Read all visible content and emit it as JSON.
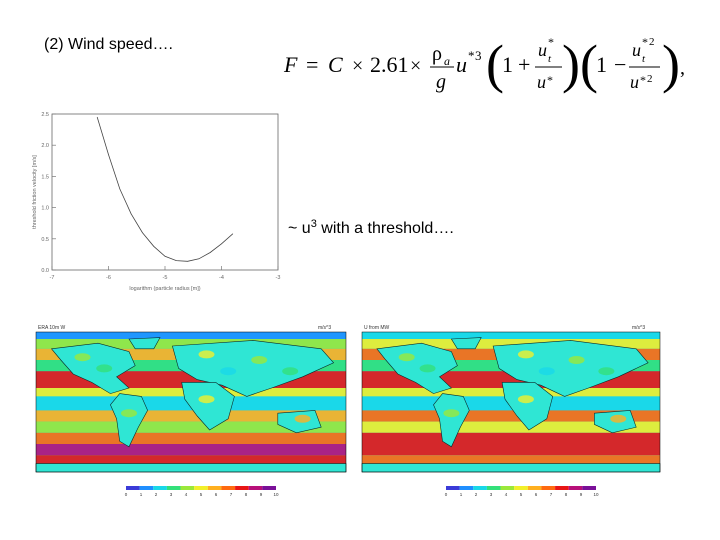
{
  "slide": {
    "title": "(2) Wind speed….",
    "threshold_note": {
      "prefix": "~ u",
      "sup": "3",
      "suffix": " with a threshold…."
    }
  },
  "formula": {
    "lhs": "F",
    "equals": "=",
    "constant": "C",
    "times": "×",
    "coefficient": "2.61",
    "rho": "ρ",
    "rho_sub": "a",
    "g": "g",
    "u_star": "u",
    "star": "*",
    "cube": "3",
    "one": "1",
    "plus": "+",
    "minus": "−",
    "ut": "u",
    "t_sub": "t",
    "square": "2",
    "comma": ","
  },
  "chart_data": {
    "type": "line",
    "title": "",
    "xlabel": "logarithm (particle radius [m])",
    "ylabel": "threshold friction velocity [m/s]",
    "xlim": [
      -7,
      -3
    ],
    "ylim": [
      0,
      2.5
    ],
    "x_ticks": [
      "-7",
      "-6",
      "-5",
      "-4",
      "-3"
    ],
    "y_ticks": [
      "0.0",
      "0.5",
      "1.0",
      "1.5",
      "2.0",
      "2.5"
    ],
    "grid": false,
    "series": [
      {
        "x": [
          -6.2,
          -6.0,
          -5.8,
          -5.6,
          -5.4,
          -5.2,
          -5.0,
          -4.8,
          -4.6,
          -4.4,
          -4.2,
          -4.0,
          -3.8
        ],
        "y": [
          2.45,
          1.85,
          1.3,
          0.9,
          0.6,
          0.38,
          0.22,
          0.15,
          0.14,
          0.18,
          0.28,
          0.42,
          0.58
        ]
      }
    ]
  },
  "maps": {
    "left_title": "ERA 10m W",
    "left_right_label": "m/s^3",
    "right_title": "U from MW",
    "right_right_label": "m/s^3",
    "colorbar_ticks": [
      "0",
      "1",
      "2",
      "3",
      "4",
      "5",
      "6",
      "7",
      "8",
      "9",
      "10"
    ],
    "colorbar_colors": [
      "#3b3bd8",
      "#1f8fff",
      "#19d8e8",
      "#33e07a",
      "#9be83a",
      "#f2f02a",
      "#ffb020",
      "#ff6a10",
      "#e81515",
      "#b8107a",
      "#7a1098"
    ],
    "ocean_base": "#25d0ef",
    "land_color": "#2fe6d4"
  }
}
